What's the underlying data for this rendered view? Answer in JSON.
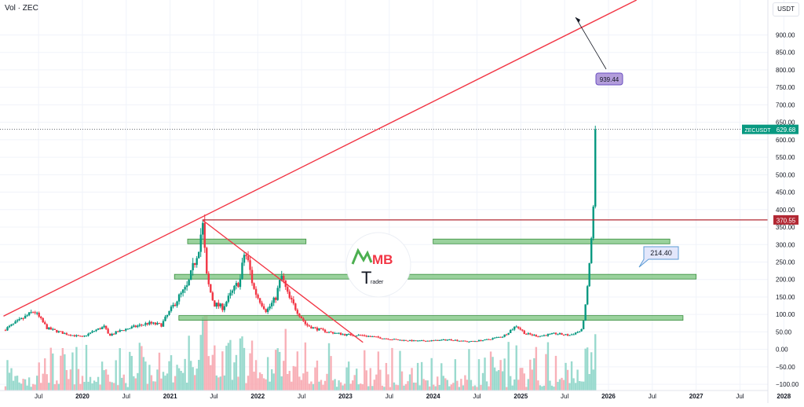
{
  "header": {
    "indicator": "Vol · ZEC",
    "currency": "USDT"
  },
  "watermark": {
    "text_a": "MB",
    "text_b": "T",
    "text_c": "rader"
  },
  "colors": {
    "up": "#089981",
    "down": "#f23645",
    "zone_fill": "#81c784",
    "zone_stroke": "#388e3c",
    "resistance": "#b22833",
    "trend": "#f23645",
    "grid": "#f0f3fa"
  },
  "chart_data": {
    "type": "candlestick",
    "symbol": "ZECUSDT",
    "y_axis": {
      "ticks": [
        -100,
        -50,
        0,
        50,
        100,
        150,
        200,
        250,
        300,
        350,
        400,
        450,
        500,
        550,
        600,
        650,
        700,
        750,
        800,
        850,
        900
      ],
      "tick_labels": [
        "−100.00",
        "−50.00",
        "0.00",
        "50.00",
        "100.00",
        "150.00",
        "200.00",
        "250.00",
        "300.00",
        "350.00",
        "400.00",
        "450.00",
        "500.00",
        "550.00",
        "600.00",
        "650.00",
        "700.00",
        "750.00",
        "800.00",
        "850.00",
        "900.00"
      ],
      "range": [
        -120,
        1000
      ]
    },
    "x_axis": {
      "ticks": [
        2019.5,
        2020.0,
        2020.5,
        2021.0,
        2021.5,
        2022.0,
        2022.5,
        2023.0,
        2023.5,
        2024.0,
        2024.5,
        2025.0,
        2025.5,
        2026.0,
        2026.5,
        2027.0,
        2027.5,
        2028.0
      ],
      "tick_labels": [
        "Jul",
        "2020",
        "Jul",
        "2021",
        "Jul",
        "2022",
        "Jul",
        "2023",
        "Jul",
        "2024",
        "Jul",
        "2025",
        "Jul",
        "2026",
        "Jul",
        "2027",
        "Jul",
        "2028"
      ],
      "range": [
        2019.06,
        2028.23
      ]
    },
    "price_path": [
      [
        2019.1,
        55
      ],
      [
        2019.3,
        85
      ],
      [
        2019.45,
        110
      ],
      [
        2019.6,
        60
      ],
      [
        2019.8,
        45
      ],
      [
        2020.0,
        35
      ],
      [
        2020.15,
        55
      ],
      [
        2020.25,
        65
      ],
      [
        2020.3,
        40
      ],
      [
        2020.45,
        55
      ],
      [
        2020.6,
        65
      ],
      [
        2020.75,
        75
      ],
      [
        2020.9,
        70
      ],
      [
        2021.0,
        110
      ],
      [
        2021.1,
        150
      ],
      [
        2021.2,
        180
      ],
      [
        2021.28,
        250
      ],
      [
        2021.33,
        300
      ],
      [
        2021.37,
        360
      ],
      [
        2021.42,
        200
      ],
      [
        2021.5,
        130
      ],
      [
        2021.6,
        120
      ],
      [
        2021.7,
        160
      ],
      [
        2021.8,
        200
      ],
      [
        2021.85,
        280
      ],
      [
        2021.9,
        240
      ],
      [
        2021.95,
        175
      ],
      [
        2022.0,
        150
      ],
      [
        2022.1,
        110
      ],
      [
        2022.2,
        145
      ],
      [
        2022.27,
        210
      ],
      [
        2022.35,
        150
      ],
      [
        2022.45,
        110
      ],
      [
        2022.55,
        70
      ],
      [
        2022.65,
        60
      ],
      [
        2022.8,
        50
      ],
      [
        2023.0,
        42
      ],
      [
        2023.2,
        40
      ],
      [
        2023.4,
        33
      ],
      [
        2023.6,
        27
      ],
      [
        2023.8,
        24
      ],
      [
        2024.0,
        25
      ],
      [
        2024.2,
        28
      ],
      [
        2024.4,
        22
      ],
      [
        2024.6,
        27
      ],
      [
        2024.8,
        38
      ],
      [
        2024.95,
        68
      ],
      [
        2025.05,
        45
      ],
      [
        2025.2,
        38
      ],
      [
        2025.4,
        45
      ],
      [
        2025.55,
        40
      ],
      [
        2025.7,
        55
      ],
      [
        2025.75,
        150
      ],
      [
        2025.78,
        240
      ],
      [
        2025.81,
        330
      ],
      [
        2025.83,
        420
      ],
      [
        2025.85,
        629.68
      ]
    ],
    "last_price": {
      "symbol": "ZECUSDT",
      "value": 629.68,
      "label": "629.68"
    },
    "horizontal_lines": [
      {
        "name": "resistance",
        "value": 370.55,
        "label": "370.55"
      }
    ],
    "zones": [
      {
        "value": 309,
        "segments": [
          [
            2021.2,
            2022.55
          ],
          [
            2024.0,
            2026.7
          ]
        ]
      },
      {
        "value": 208,
        "segments": [
          [
            2021.05,
            2027.0
          ]
        ]
      },
      {
        "value": 90,
        "segments": [
          [
            2021.1,
            2026.85
          ]
        ]
      }
    ],
    "trendlines": [
      {
        "name": "ascending",
        "from": [
          2019.1,
          95
        ],
        "to": [
          2026.32,
          1000
        ]
      },
      {
        "name": "descending",
        "from": [
          2021.37,
          370
        ],
        "to": [
          2023.2,
          20
        ]
      }
    ],
    "callouts": [
      {
        "label": "939.44",
        "value": 939.44
      },
      {
        "label": "214.40",
        "value": 214.4
      }
    ]
  }
}
